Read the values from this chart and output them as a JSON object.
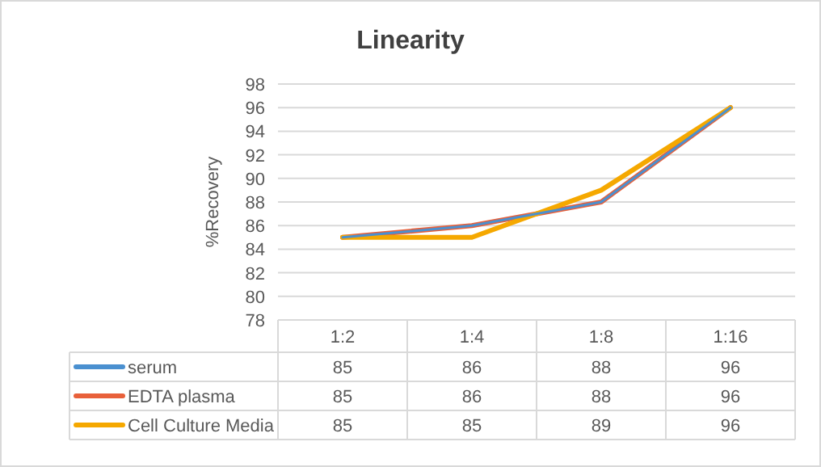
{
  "chart_data": {
    "type": "line",
    "title": "Linearity",
    "ylabel": "%Recovery",
    "categories": [
      "1:2",
      "1:4",
      "1:8",
      "1:16"
    ],
    "series": [
      {
        "name": "serum",
        "color": "#4a90d0",
        "values": [
          85,
          86,
          88,
          96
        ]
      },
      {
        "name": "EDTA plasma",
        "color": "#e8603a",
        "values": [
          85,
          86,
          88,
          96
        ]
      },
      {
        "name": "Cell Culture Media",
        "color": "#f5a800",
        "values": [
          85,
          85,
          89,
          96
        ]
      }
    ],
    "ylim": [
      78,
      98
    ],
    "yticks": [
      78,
      80,
      82,
      84,
      86,
      88,
      90,
      92,
      94,
      96,
      98
    ],
    "grid": "y",
    "legend": "bottom",
    "data_labels": true
  }
}
